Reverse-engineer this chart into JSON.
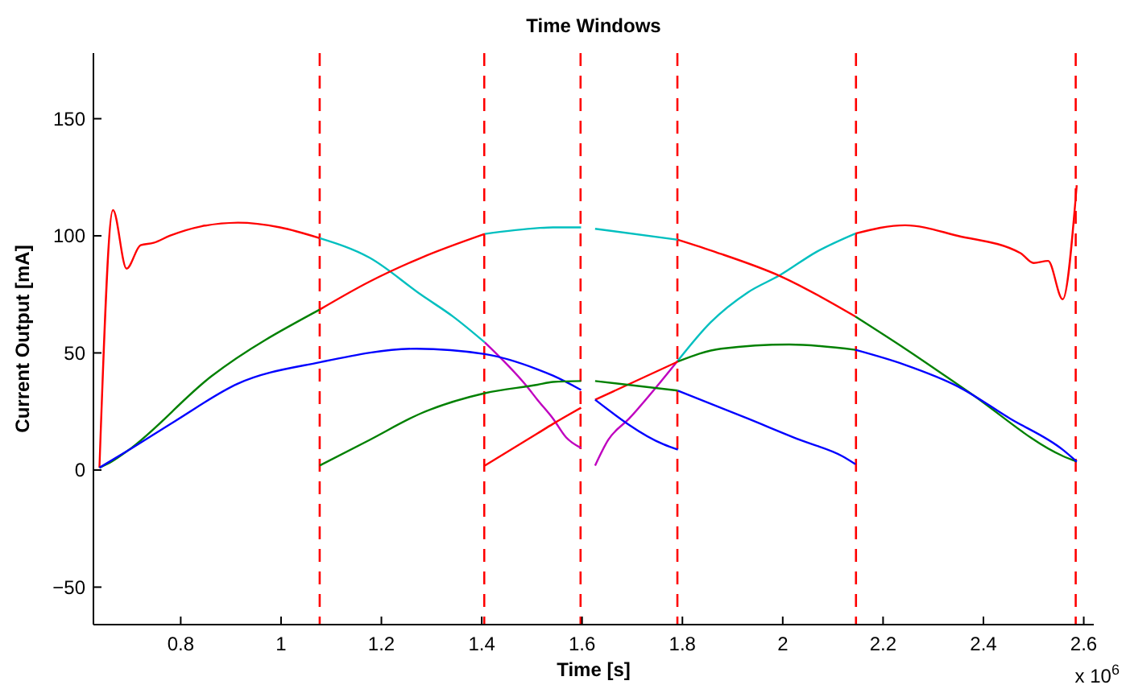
{
  "chart_data": {
    "type": "line",
    "title": "Time Windows",
    "xlabel": "Time [s]",
    "ylabel": "Current Output [mA]",
    "annotations": [
      "x 10$^{6}$"
    ],
    "xlim": [
      0.626,
      2.62
    ],
    "ylim": [
      -66,
      178
    ],
    "xticks": [
      0.8,
      1,
      1.2,
      1.4,
      1.6,
      1.8,
      2,
      2.2,
      2.4,
      2.6
    ],
    "yticks": [
      -50,
      0,
      50,
      100,
      150
    ],
    "grid": false,
    "marker": "none",
    "line_style": "solid",
    "series": [
      {
        "color": "#ff0000",
        "x": [
          0.638,
          0.665,
          0.692,
          0.72,
          0.746,
          0.778,
          0.84,
          0.914,
          0.998,
          1.077
        ],
        "values": [
          1,
          111,
          86,
          96,
          97,
          100,
          104,
          105.6,
          103.6,
          99
        ]
      },
      {
        "color": "#00bfbf",
        "x": [
          1.077,
          1.176,
          1.28,
          1.343,
          1.406
        ],
        "values": [
          99,
          90.7,
          74.7,
          65.5,
          54.5
        ]
      },
      {
        "color": "#bf00bf",
        "x": [
          1.406,
          1.49,
          1.511,
          1.542,
          1.568,
          1.598
        ],
        "values": [
          54.5,
          35.7,
          30,
          22,
          14,
          9.4
        ]
      },
      {
        "color": "#bf00bf",
        "x": [
          1.626,
          1.652,
          1.694,
          1.791
        ],
        "values": [
          1.9,
          12.8,
          22,
          46.7
        ]
      },
      {
        "color": "#00bfbf",
        "x": [
          1.791,
          1.856,
          1.93,
          1.996,
          2.066,
          2.145
        ],
        "values": [
          46.7,
          63,
          75.8,
          83.4,
          93,
          101
        ]
      },
      {
        "color": "#ff0000",
        "x": [
          2.145,
          2.244,
          2.349,
          2.474,
          2.5,
          2.529,
          2.558,
          2.586
        ],
        "values": [
          101,
          104.5,
          100,
          92.6,
          88.4,
          89.3,
          72.9,
          121.6
        ]
      },
      {
        "color": "#00bfbf",
        "x": [
          1.406,
          1.511,
          1.542,
          1.598
        ],
        "values": [
          100.8,
          103.3,
          103.6,
          103.6
        ]
      },
      {
        "color": "#00bfbf",
        "x": [
          1.626,
          1.791
        ],
        "values": [
          103,
          98.3
        ]
      },
      {
        "color": "#ff0000",
        "x": [
          1.791,
          1.867,
          1.996,
          2.145
        ],
        "values": [
          98.3,
          93,
          82.7,
          65.5
        ]
      },
      {
        "color": "#008000",
        "x": [
          2.145,
          2.244,
          2.37,
          2.558,
          2.586
        ],
        "values": [
          65.5,
          51.8,
          33.4,
          6,
          3.6
        ]
      },
      {
        "color": "#008000",
        "x": [
          0.638,
          0.663,
          0.694,
          0.861,
          1.077
        ],
        "values": [
          1,
          3.7,
          8.2,
          40,
          68.5
        ]
      },
      {
        "color": "#ff0000",
        "x": [
          1.077,
          1.176,
          1.28,
          1.406
        ],
        "values": [
          68.5,
          80.4,
          90.7,
          100.8
        ]
      },
      {
        "color": "#ff0000",
        "x": [
          1.406,
          1.511,
          1.542,
          1.598
        ],
        "values": [
          1.9,
          15.6,
          19.7,
          26.6
        ]
      },
      {
        "color": "#ff0000",
        "x": [
          1.626,
          1.791
        ],
        "values": [
          30,
          46.3
        ]
      },
      {
        "color": "#008000",
        "x": [
          1.791,
          1.877,
          2.013,
          2.145
        ],
        "values": [
          46.3,
          51.8,
          53.6,
          51.3
        ]
      },
      {
        "color": "#0000ff",
        "x": [
          2.145,
          2.244,
          2.349,
          2.453,
          2.558,
          2.586
        ],
        "values": [
          51.3,
          44.9,
          35.7,
          22,
          8.7,
          3.6
        ]
      },
      {
        "color": "#0000ff",
        "x": [
          0.638,
          0.694,
          0.788,
          0.914,
          1.077,
          1.27,
          1.406,
          1.511,
          1.542,
          1.598
        ],
        "values": [
          1,
          8.2,
          20.8,
          36.9,
          46,
          51.8,
          49.5,
          43,
          40.3,
          34.2
        ]
      },
      {
        "color": "#0000ff",
        "x": [
          1.626,
          1.762,
          1.791
        ],
        "values": [
          30,
          11,
          8.7
        ]
      },
      {
        "color": "#008000",
        "x": [
          1.077,
          1.176,
          1.28,
          1.406,
          1.511,
          1.542,
          1.598
        ],
        "values": [
          1.9,
          12.8,
          24.3,
          32.8,
          36.4,
          37.6,
          38
        ]
      },
      {
        "color": "#008000",
        "x": [
          1.626,
          1.791
        ],
        "values": [
          38,
          33.9
        ]
      },
      {
        "color": "#0000ff",
        "x": [
          1.791,
          1.93,
          2.035,
          2.118,
          2.145
        ],
        "values": [
          33.9,
          22,
          12.8,
          6,
          2.5
        ]
      }
    ],
    "ref_lines": [
      {
        "axis": "x",
        "value": 1.077,
        "color": "#ff0000",
        "line_style": "dashed"
      },
      {
        "axis": "x",
        "value": 1.405,
        "color": "#ff0000",
        "line_style": "dashed"
      },
      {
        "axis": "x",
        "value": 1.597,
        "color": "#ff0000",
        "line_style": "dashed"
      },
      {
        "axis": "x",
        "value": 1.79,
        "color": "#ff0000",
        "line_style": "dashed"
      },
      {
        "axis": "x",
        "value": 2.146,
        "color": "#ff0000",
        "line_style": "dashed"
      },
      {
        "axis": "x",
        "value": 2.584,
        "color": "#ff0000",
        "line_style": "dashed"
      }
    ]
  }
}
